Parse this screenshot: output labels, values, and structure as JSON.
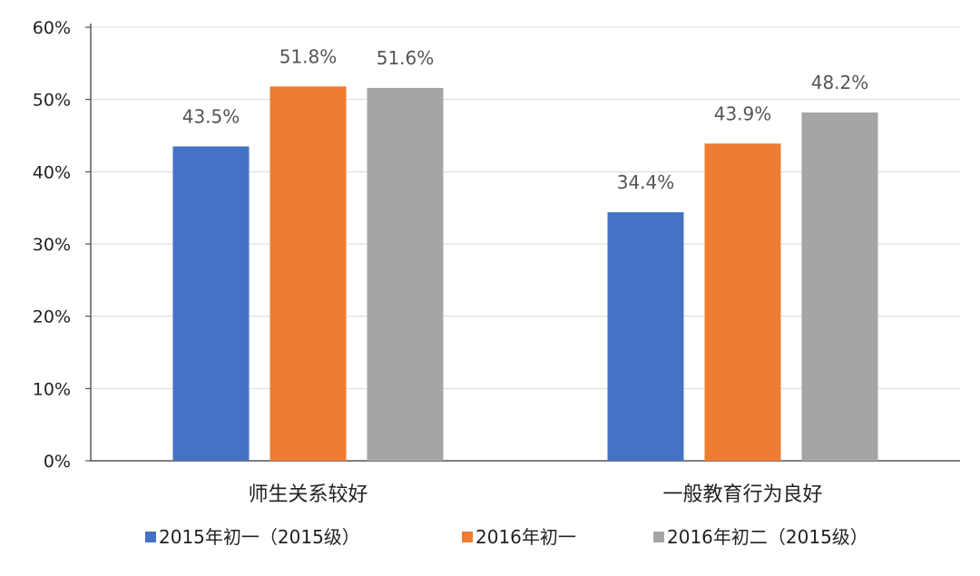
{
  "chart_data": {
    "type": "bar",
    "title": "",
    "xlabel": "",
    "ylabel": "",
    "ylim": [
      0,
      60
    ],
    "yticks": [
      0,
      10,
      20,
      30,
      40,
      50,
      60
    ],
    "ytick_labels": [
      "0%",
      "10%",
      "20%",
      "30%",
      "40%",
      "50%",
      "60%"
    ],
    "grid": true,
    "legend_position": "bottom",
    "categories": [
      "师生关系较好",
      "一般教育行为良好"
    ],
    "series": [
      {
        "name": "2015年初一（2015级）",
        "color": "#4472C4",
        "values": [
          43.5,
          34.4
        ],
        "labels": [
          "43.5%",
          "34.4%"
        ]
      },
      {
        "name": "2016年初一",
        "color": "#ED7D31",
        "values": [
          51.8,
          43.9
        ],
        "labels": [
          "51.8%",
          "43.9%"
        ]
      },
      {
        "name": "2016年初二（2015级）",
        "color": "#A5A5A5",
        "values": [
          51.6,
          48.2
        ],
        "labels": [
          "51.6%",
          "48.2%"
        ]
      }
    ]
  }
}
